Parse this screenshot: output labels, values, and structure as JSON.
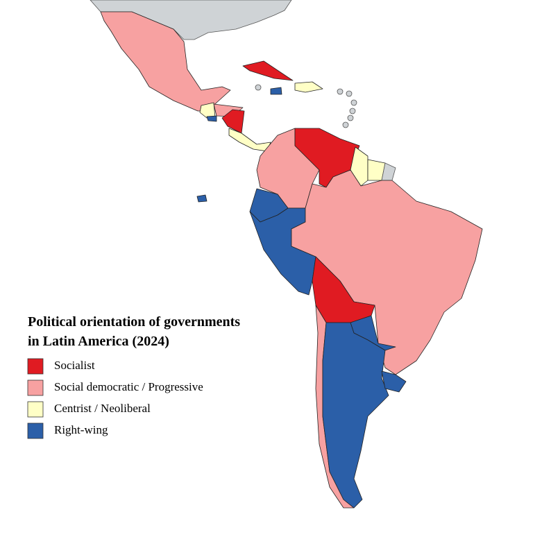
{
  "title": [
    "Political orientation of governments",
    "in Latin America (2024)"
  ],
  "legend": [
    {
      "label": "Socialist",
      "color": "#e01b22"
    },
    {
      "label": "Social democratic / Progressive",
      "color": "#f7a1a1"
    },
    {
      "label": "Centrist / Neoliberal",
      "color": "#ffffc6"
    },
    {
      "label": "Right-wing",
      "color": "#2b5fa8"
    }
  ]
}
